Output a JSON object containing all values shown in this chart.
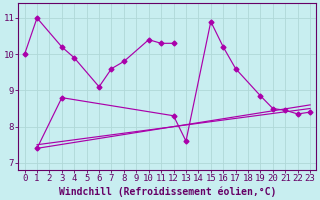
{
  "xlabel": "Windchill (Refroidissement éolien,°C)",
  "background_color": "#c8eef0",
  "grid_color": "#b0d8d8",
  "line_color": "#aa00aa",
  "series": {
    "s1_x": [
      0,
      1,
      3,
      4,
      6,
      7,
      8,
      10,
      11,
      12
    ],
    "s1_y": [
      10.0,
      11.0,
      10.2,
      9.9,
      9.1,
      9.6,
      9.8,
      10.4,
      10.3,
      10.3
    ],
    "s2_x": [
      1,
      3,
      12,
      13,
      15,
      16,
      17,
      19,
      20,
      21,
      22,
      23
    ],
    "s2_y": [
      7.4,
      8.8,
      8.3,
      7.6,
      10.9,
      10.2,
      9.6,
      8.85,
      8.5,
      8.45,
      8.35,
      8.4
    ],
    "trend1_x": [
      1,
      23
    ],
    "trend1_y": [
      7.4,
      8.6
    ],
    "trend2_x": [
      1,
      23
    ],
    "trend2_y": [
      7.5,
      8.5
    ]
  },
  "ylim": [
    6.8,
    11.4
  ],
  "xlim": [
    -0.5,
    23.5
  ],
  "yticks": [
    7,
    8,
    9,
    10,
    11
  ],
  "xticks": [
    0,
    1,
    2,
    3,
    4,
    5,
    6,
    7,
    8,
    9,
    10,
    11,
    12,
    13,
    14,
    15,
    16,
    17,
    18,
    19,
    20,
    21,
    22,
    23
  ],
  "tick_fontsize": 6.5,
  "label_fontsize": 7
}
